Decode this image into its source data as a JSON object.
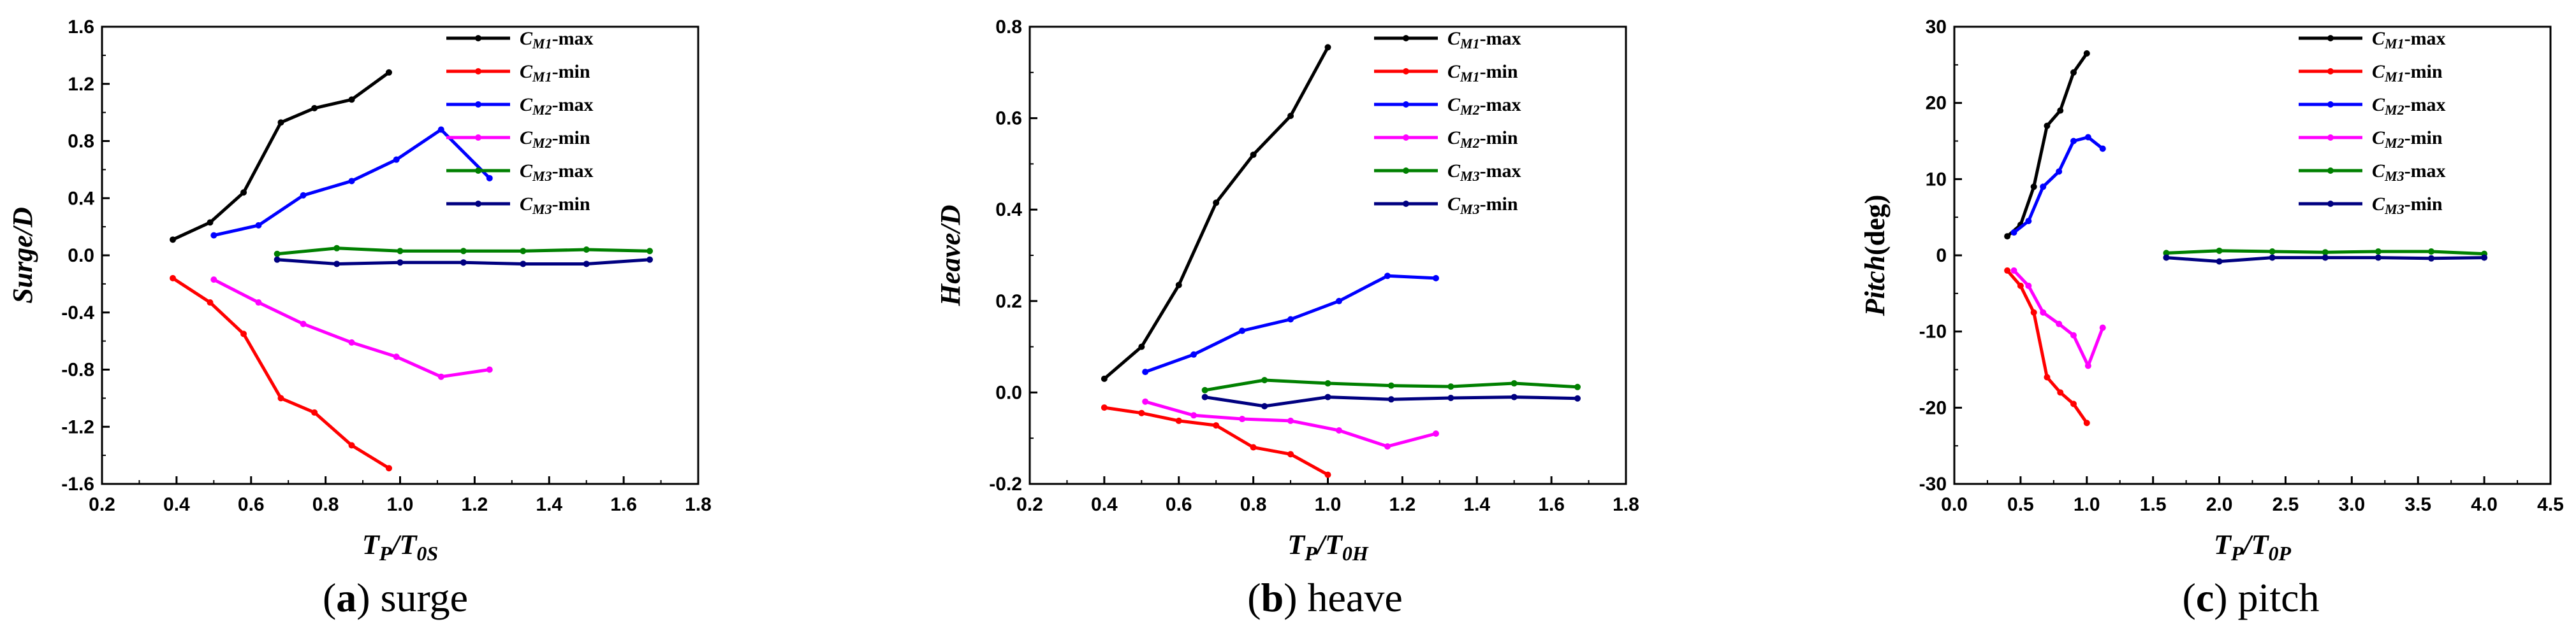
{
  "chart_data": [
    {
      "id": "surge",
      "type": "line",
      "caption_letter": "a",
      "caption_text": "surge",
      "ylabel": "Surge/D",
      "xlabel_main": "T",
      "xlabel_sub1": "P",
      "xlabel_mid": "/T",
      "xlabel_sub2": "0S",
      "xlim": [
        0.2,
        1.8
      ],
      "ylim": [
        -1.6,
        1.6
      ],
      "xticks": [
        "0.2",
        "0.4",
        "0.6",
        "0.8",
        "1.0",
        "1.2",
        "1.4",
        "1.6",
        "1.8"
      ],
      "yticks": [
        "-1.6",
        "-1.2",
        "-0.8",
        "-0.4",
        "0.0",
        "0.4",
        "0.8",
        "1.2",
        "1.6"
      ],
      "legend_position": "top-right",
      "series": [
        {
          "name": "CM1-max",
          "color": "#000000",
          "x": [
            0.39,
            0.49,
            0.58,
            0.68,
            0.77,
            0.87,
            0.97
          ],
          "y": [
            0.11,
            0.23,
            0.44,
            0.93,
            1.03,
            1.09,
            1.28
          ]
        },
        {
          "name": "CM1-min",
          "color": "#ff0000",
          "x": [
            0.39,
            0.49,
            0.58,
            0.68,
            0.77,
            0.87,
            0.97
          ],
          "y": [
            -0.16,
            -0.33,
            -0.55,
            -1.0,
            -1.1,
            -1.33,
            -1.49
          ]
        },
        {
          "name": "CM2-max",
          "color": "#0000ff",
          "x": [
            0.5,
            0.62,
            0.74,
            0.87,
            0.99,
            1.11,
            1.24
          ],
          "y": [
            0.14,
            0.21,
            0.42,
            0.52,
            0.67,
            0.88,
            0.54
          ]
        },
        {
          "name": "CM2-min",
          "color": "#ff00ff",
          "x": [
            0.5,
            0.62,
            0.74,
            0.87,
            0.99,
            1.11,
            1.24
          ],
          "y": [
            -0.17,
            -0.33,
            -0.48,
            -0.61,
            -0.71,
            -0.85,
            -0.8
          ]
        },
        {
          "name": "CM3-max",
          "color": "#008000",
          "x": [
            0.67,
            0.83,
            1.0,
            1.17,
            1.33,
            1.5,
            1.67
          ],
          "y": [
            0.01,
            0.05,
            0.03,
            0.03,
            0.03,
            0.04,
            0.03
          ]
        },
        {
          "name": "CM3-min",
          "color": "#000080",
          "x": [
            0.67,
            0.83,
            1.0,
            1.17,
            1.33,
            1.5,
            1.67
          ],
          "y": [
            -0.03,
            -0.06,
            -0.05,
            -0.05,
            -0.06,
            -0.06,
            -0.03
          ]
        }
      ]
    },
    {
      "id": "heave",
      "type": "line",
      "caption_letter": "b",
      "caption_text": "heave",
      "ylabel": "Heave/D",
      "xlabel_main": "T",
      "xlabel_sub1": "P",
      "xlabel_mid": "/T",
      "xlabel_sub2": "0H",
      "xlim": [
        0.2,
        1.8
      ],
      "ylim": [
        -0.2,
        0.8
      ],
      "xticks": [
        "0.2",
        "0.4",
        "0.6",
        "0.8",
        "1.0",
        "1.2",
        "1.4",
        "1.6",
        "1.8"
      ],
      "yticks": [
        "-0.2",
        "0.0",
        "0.2",
        "0.4",
        "0.6",
        "0.8"
      ],
      "legend_position": "top-right",
      "series": [
        {
          "name": "CM1-max",
          "color": "#000000",
          "x": [
            0.4,
            0.5,
            0.6,
            0.7,
            0.8,
            0.9,
            1.0
          ],
          "y": [
            0.03,
            0.1,
            0.235,
            0.415,
            0.52,
            0.605,
            0.755
          ]
        },
        {
          "name": "CM1-min",
          "color": "#ff0000",
          "x": [
            0.4,
            0.5,
            0.6,
            0.7,
            0.8,
            0.9,
            1.0
          ],
          "y": [
            -0.033,
            -0.045,
            -0.062,
            -0.072,
            -0.12,
            -0.135,
            -0.18
          ]
        },
        {
          "name": "CM2-max",
          "color": "#0000ff",
          "x": [
            0.51,
            0.64,
            0.77,
            0.9,
            1.03,
            1.16,
            1.29
          ],
          "y": [
            0.045,
            0.083,
            0.135,
            0.16,
            0.2,
            0.255,
            0.25
          ]
        },
        {
          "name": "CM2-min",
          "color": "#ff00ff",
          "x": [
            0.51,
            0.64,
            0.77,
            0.9,
            1.03,
            1.16,
            1.29
          ],
          "y": [
            -0.02,
            -0.05,
            -0.058,
            -0.062,
            -0.083,
            -0.118,
            -0.09
          ]
        },
        {
          "name": "CM3-max",
          "color": "#008000",
          "x": [
            0.67,
            0.83,
            1.0,
            1.17,
            1.33,
            1.5,
            1.67
          ],
          "y": [
            0.005,
            0.027,
            0.02,
            0.015,
            0.013,
            0.02,
            0.012
          ]
        },
        {
          "name": "CM3-min",
          "color": "#000080",
          "x": [
            0.67,
            0.83,
            1.0,
            1.17,
            1.33,
            1.5,
            1.67
          ],
          "y": [
            -0.01,
            -0.03,
            -0.01,
            -0.015,
            -0.012,
            -0.01,
            -0.013
          ]
        }
      ]
    },
    {
      "id": "pitch",
      "type": "line",
      "caption_letter": "c",
      "caption_text": "pitch",
      "ylabel": "Pitch",
      "ylabel_unit": "(deg)",
      "xlabel_main": "T",
      "xlabel_sub1": "P",
      "xlabel_mid": "/T",
      "xlabel_sub2": "0P",
      "xlim": [
        0.0,
        4.5
      ],
      "ylim": [
        -30,
        30
      ],
      "xticks": [
        "0.0",
        "0.5",
        "1.0",
        "1.5",
        "2.0",
        "2.5",
        "3.0",
        "3.5",
        "4.0",
        "4.5"
      ],
      "yticks": [
        "-30",
        "-20",
        "-10",
        "0",
        "10",
        "20",
        "30"
      ],
      "legend_position": "top-right",
      "series": [
        {
          "name": "CM1-max",
          "color": "#000000",
          "x": [
            0.4,
            0.5,
            0.6,
            0.7,
            0.8,
            0.9,
            1.0
          ],
          "y": [
            2.5,
            4.0,
            9.0,
            17.0,
            19.0,
            24.0,
            26.5
          ]
        },
        {
          "name": "CM1-min",
          "color": "#ff0000",
          "x": [
            0.4,
            0.5,
            0.6,
            0.7,
            0.8,
            0.9,
            1.0
          ],
          "y": [
            -2.0,
            -4.0,
            -7.5,
            -16.0,
            -18.0,
            -19.5,
            -22.0
          ]
        },
        {
          "name": "CM2-max",
          "color": "#0000ff",
          "x": [
            0.45,
            0.56,
            0.67,
            0.79,
            0.9,
            1.01,
            1.12
          ],
          "y": [
            3.0,
            4.5,
            9.0,
            11.0,
            15.0,
            15.5,
            14.0
          ]
        },
        {
          "name": "CM2-min",
          "color": "#ff00ff",
          "x": [
            0.45,
            0.56,
            0.67,
            0.79,
            0.9,
            1.01,
            1.12
          ],
          "y": [
            -2.0,
            -4.0,
            -7.5,
            -9.0,
            -10.5,
            -14.5,
            -9.5
          ]
        },
        {
          "name": "CM3-max",
          "color": "#008000",
          "x": [
            1.6,
            2.0,
            2.4,
            2.8,
            3.2,
            3.6,
            4.0
          ],
          "y": [
            0.3,
            0.6,
            0.5,
            0.4,
            0.5,
            0.5,
            0.2
          ]
        },
        {
          "name": "CM3-min",
          "color": "#000080",
          "x": [
            1.6,
            2.0,
            2.4,
            2.8,
            3.2,
            3.6,
            4.0
          ],
          "y": [
            -0.3,
            -0.8,
            -0.3,
            -0.3,
            -0.3,
            -0.4,
            -0.3
          ]
        }
      ]
    }
  ]
}
